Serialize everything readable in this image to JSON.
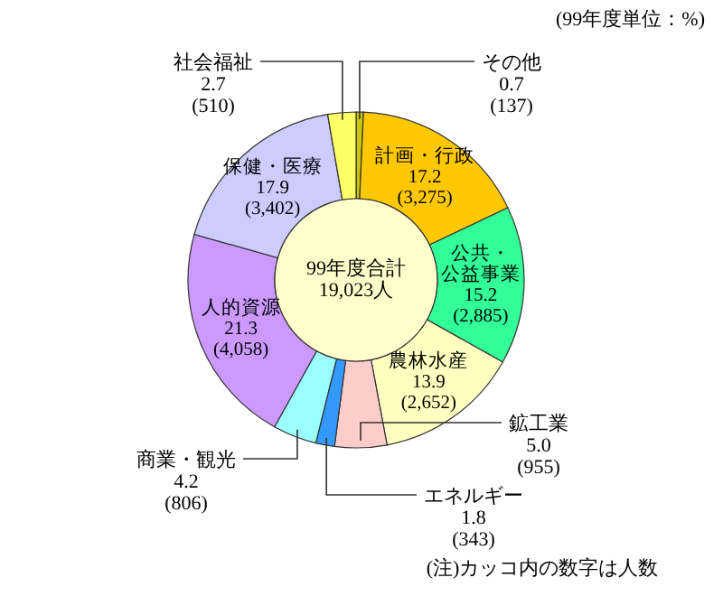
{
  "chart_data": {
    "type": "donut",
    "categories": [
      "その他",
      "計画・行政",
      "公共・公益事業",
      "農林水産",
      "鉱工業",
      "エネルギー",
      "商業・観光",
      "人的資源",
      "保健・医療",
      "社会福祉"
    ],
    "values": [
      0.7,
      17.2,
      15.2,
      13.9,
      5.0,
      1.8,
      4.2,
      21.3,
      17.9,
      2.7
    ],
    "value_labels": [
      "0.7\n(137)",
      "17.2\n(3,275)",
      "15.2\n(2,885)",
      "13.9\n(2,652)",
      "5.0\n(955)",
      "1.8\n(343)",
      "4.2\n(806)",
      "21.3\n(4,058)",
      "17.9\n(3,402)",
      "2.7\n(510)"
    ],
    "colors": [
      "#c8c800",
      "#ffc800",
      "#33ff99",
      "#ffffc0",
      "#ffcccc",
      "#3399ff",
      "#99ffff",
      "#cc99ff",
      "#ccccff",
      "#ffff66"
    ],
    "annotations": [
      "(99年度単位：%)",
      "99年度合計\n19,023人",
      "(注)カッコ内の数字は人数"
    ]
  }
}
